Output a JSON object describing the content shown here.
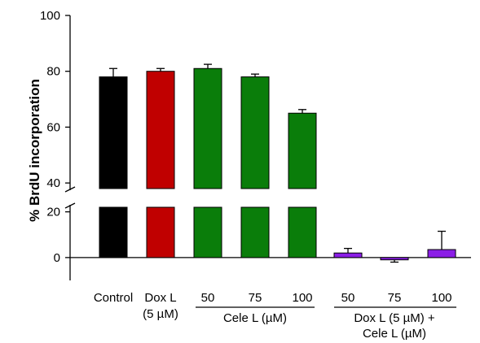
{
  "chart_data": {
    "type": "bar",
    "title": "",
    "ylabel": "% BrdU incorporation",
    "xlabel": "",
    "ylim": [
      0,
      100
    ],
    "y_axis_break": [
      22,
      38
    ],
    "y_ticks": [
      "0",
      "20",
      "40",
      "60",
      "80",
      "100"
    ],
    "grid": false,
    "legend": "none",
    "categories": [
      {
        "label": "Control",
        "sublabel": "",
        "value": 78,
        "error": 3,
        "color": "#000000"
      },
      {
        "label": "Dox L",
        "sublabel": "(5 µM)",
        "value": 80,
        "error": 1,
        "color": "#c00000"
      },
      {
        "label": "50",
        "sublabel": "",
        "value": 81,
        "error": 1.5,
        "color": "#0a7d0a"
      },
      {
        "label": "75",
        "sublabel": "",
        "value": 78,
        "error": 1,
        "color": "#0a7d0a"
      },
      {
        "label": "100",
        "sublabel": "",
        "value": 65,
        "error": 1.3,
        "color": "#0a7d0a"
      },
      {
        "label": "50",
        "sublabel": "",
        "value": 2,
        "error": 2,
        "color": "#8b1ee6"
      },
      {
        "label": "75",
        "sublabel": "",
        "value": -1,
        "error": 1,
        "color": "#8b1ee6"
      },
      {
        "label": "100",
        "sublabel": "",
        "value": 3.5,
        "error": 8,
        "color": "#8b1ee6"
      }
    ],
    "group_labels": [
      {
        "text": "Cele L (µM)",
        "line2": ""
      },
      {
        "text": "Dox L (5 µM) +",
        "line2": "Cele L (µM)"
      }
    ]
  }
}
